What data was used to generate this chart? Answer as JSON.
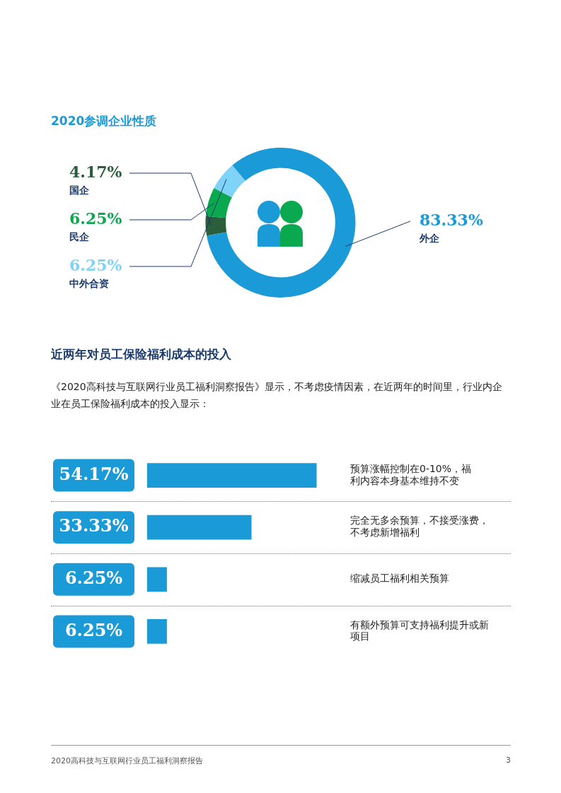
{
  "chart_data": [
    {
      "type": "donut",
      "title": "2020参调企业性质",
      "categories": [
        "国企",
        "民企",
        "中外合资",
        "外企"
      ],
      "values": [
        4.17,
        6.25,
        6.25,
        83.33
      ],
      "value_labels": [
        "4.17%",
        "6.25%",
        "6.25%",
        "83.33%"
      ],
      "colors": [
        "#2b5f3b",
        "#0aa84f",
        "#7fd3f8",
        "#1a9ad6"
      ],
      "legend": false
    },
    {
      "type": "bar",
      "orientation": "horizontal",
      "title": "近两年对员工保险福利成本的投入",
      "subtitle": "《2020高科技与互联网行业员工福利洞察报告》显示，不考虑疫情因素，在近两年的时间里，行业内企业在员工保险福利成本的投入显示：",
      "categories": [
        "预算涨幅控制在0-10%，福利内容本身基本维持不变",
        "完全无多余预算，不接受涨费，不考虑新增福利",
        "缩减员工福利相关预算",
        "有额外预算可支持福利提升或新项目"
      ],
      "values": [
        54.17,
        33.33,
        6.25,
        6.25
      ],
      "value_labels": [
        "54.17%",
        "33.33%",
        "6.25%",
        "6.25%"
      ],
      "color": "#1a9ad6",
      "tick_labels": "y",
      "legend": false,
      "annotations": [
        "2020高科技与互联网行业员工福利洞察报告",
        "3"
      ]
    }
  ]
}
